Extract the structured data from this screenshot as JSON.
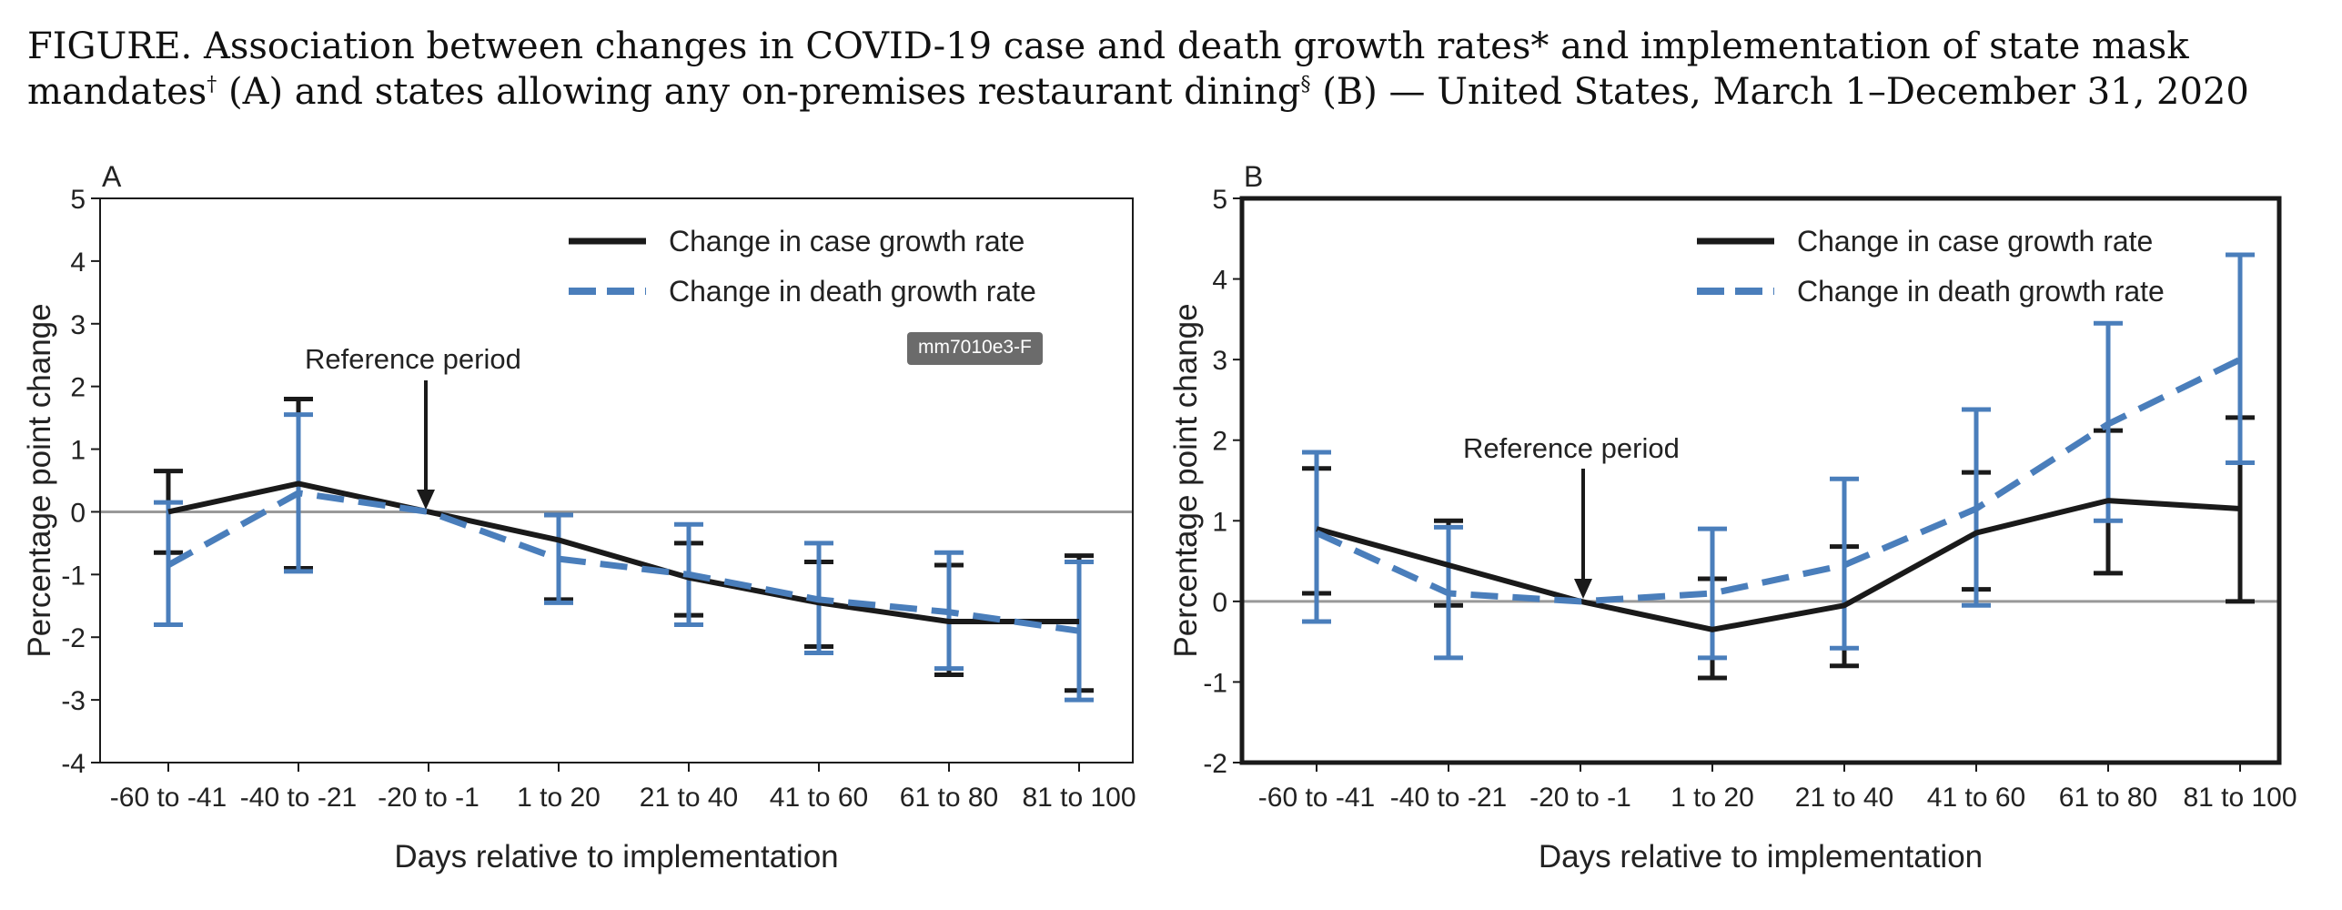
{
  "title": {
    "line1": "FIGURE. Association between changes in COVID-19 case and death growth rates* and implementation of state mask",
    "line2_a": "mandates",
    "mark_dagger": "†",
    "line2_b": " (A) and states allowing any on-premises restaurant dining",
    "mark_section": "§",
    "line2_c": " (B) — United States, March 1–December 31, 2020"
  },
  "badge": "mm7010e3-F",
  "colors": {
    "case": "#1a1a1a",
    "death": "#4a7ebb",
    "zero_line": "#999999"
  },
  "chart_data": [
    {
      "panel": "A",
      "type": "line",
      "xlabel": "Days relative to implementation",
      "ylabel": "Percentage point change",
      "ylim": [
        -4,
        5
      ],
      "yticks": [
        "5",
        "4",
        "3",
        "2",
        "1",
        "0",
        "-1",
        "-2",
        "-3",
        "-4"
      ],
      "categories": [
        "-60 to -41",
        "-40 to -21",
        "-20 to -1",
        "1 to 20",
        "21 to 40",
        "41 to 60",
        "61 to 80",
        "81 to 100"
      ],
      "annotation": "Reference period",
      "reference_category": "-20 to -1",
      "series": [
        {
          "name": "Change in case growth rate",
          "values": [
            0.0,
            0.45,
            0.0,
            -0.45,
            -1.05,
            -1.45,
            -1.75,
            -1.75
          ],
          "ci_low": [
            -0.65,
            -0.9,
            0.0,
            -1.4,
            -1.65,
            -2.15,
            -2.6,
            -2.85
          ],
          "ci_high": [
            0.65,
            1.8,
            0.0,
            -0.05,
            -0.5,
            -0.8,
            -0.85,
            -0.7
          ]
        },
        {
          "name": "Change in death growth rate",
          "values": [
            -0.85,
            0.3,
            0.0,
            -0.75,
            -1.0,
            -1.4,
            -1.6,
            -1.9
          ],
          "ci_low": [
            -1.8,
            -0.95,
            0.0,
            -1.45,
            -1.8,
            -2.25,
            -2.5,
            -3.0
          ],
          "ci_high": [
            0.15,
            1.55,
            0.0,
            -0.05,
            -0.2,
            -0.5,
            -0.65,
            -0.8
          ]
        }
      ]
    },
    {
      "panel": "B",
      "type": "line",
      "xlabel": "Days relative to implementation",
      "ylabel": "Percentage point change",
      "ylim": [
        -2,
        5
      ],
      "yticks": [
        "5",
        "4",
        "3",
        "2",
        "1",
        "0",
        "-1",
        "-2"
      ],
      "categories": [
        "-60 to -41",
        "-40 to -21",
        "-20 to -1",
        "1 to 20",
        "21 to 40",
        "41 to 60",
        "61 to 80",
        "81 to 100"
      ],
      "annotation": "Reference period",
      "reference_category": "-20 to -1",
      "series": [
        {
          "name": "Change in case growth rate",
          "values": [
            0.9,
            0.45,
            0.0,
            -0.35,
            -0.05,
            0.85,
            1.25,
            1.15
          ],
          "ci_low": [
            0.1,
            -0.05,
            0.0,
            -0.95,
            -0.8,
            0.15,
            0.35,
            0.0
          ],
          "ci_high": [
            1.65,
            1.0,
            0.0,
            0.28,
            0.68,
            1.6,
            2.12,
            2.28
          ]
        },
        {
          "name": "Change in death growth rate",
          "values": [
            0.85,
            0.1,
            0.0,
            0.1,
            0.45,
            1.15,
            2.2,
            3.0
          ],
          "ci_low": [
            -0.25,
            -0.7,
            0.0,
            -0.7,
            -0.58,
            -0.05,
            1.0,
            1.72
          ],
          "ci_high": [
            1.85,
            0.92,
            0.0,
            0.9,
            1.52,
            2.38,
            3.45,
            4.3
          ]
        }
      ]
    }
  ]
}
